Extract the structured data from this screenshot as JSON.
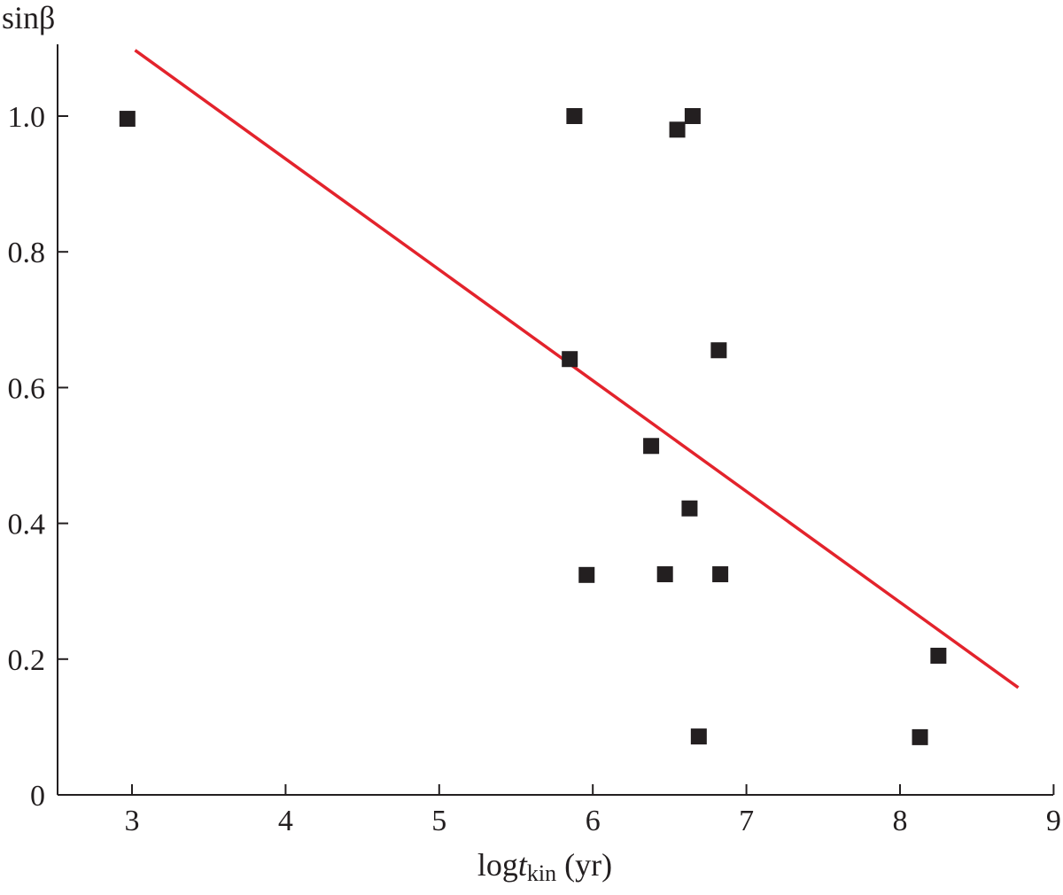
{
  "chart_data": {
    "type": "scatter",
    "title": "",
    "ylabel": "sinβ",
    "xlabel": {
      "prefix": "log",
      "var": "t",
      "sub": "kin",
      "suffix": " (yr)"
    },
    "xlim": [
      2.5,
      9
    ],
    "ylim": [
      0,
      1.1
    ],
    "xticks": [
      3,
      4,
      5,
      6,
      7,
      8,
      9
    ],
    "xtick_labels": [
      "3",
      "4",
      "5",
      "6",
      "7",
      "8",
      "9"
    ],
    "yticks": [
      0,
      0.2,
      0.4,
      0.6,
      0.8,
      1.0
    ],
    "ytick_labels": [
      "0",
      "0.2",
      "0.4",
      "0.6",
      "0.8",
      "1.0"
    ],
    "grid": false,
    "points": [
      {
        "x": 2.97,
        "y": 0.996
      },
      {
        "x": 5.88,
        "y": 1.0
      },
      {
        "x": 6.55,
        "y": 0.98
      },
      {
        "x": 6.65,
        "y": 1.0
      },
      {
        "x": 5.85,
        "y": 0.642
      },
      {
        "x": 6.82,
        "y": 0.655
      },
      {
        "x": 6.38,
        "y": 0.514
      },
      {
        "x": 6.63,
        "y": 0.422
      },
      {
        "x": 5.96,
        "y": 0.324
      },
      {
        "x": 6.47,
        "y": 0.325
      },
      {
        "x": 6.83,
        "y": 0.325
      },
      {
        "x": 8.25,
        "y": 0.205
      },
      {
        "x": 6.69,
        "y": 0.086
      },
      {
        "x": 8.13,
        "y": 0.085
      }
    ],
    "fit_line": {
      "x": [
        3.02,
        8.77
      ],
      "y": [
        1.097,
        0.158
      ]
    },
    "colors": {
      "points": "#231f20",
      "fit_line": "#e3232c",
      "axes": "#231f20"
    }
  }
}
